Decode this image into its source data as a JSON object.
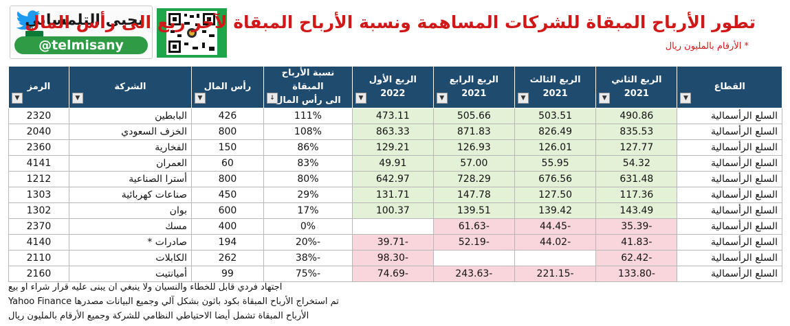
{
  "header": {
    "brand_name": "يحيى التلمساني",
    "brand_handle": "@telmisany",
    "title": "تطور الأرباح المبقاة للشركات المساهمة ونسبة الأرباح المبقاة لآخر ربع الى رأس المال",
    "subtitle": "* الأرقام بالمليون ريال"
  },
  "table": {
    "headers": {
      "sector": "القطاع",
      "q2_2021": [
        "الربع الثاني",
        "2021"
      ],
      "q3_2021": [
        "الربع الثالث",
        "2021"
      ],
      "q4_2021": [
        "الربع الرابع",
        "2021"
      ],
      "q1_2022": [
        "الربع الأول",
        "2022"
      ],
      "ratio": [
        "نسبة الأرباح المبقاة",
        "الى رأس المال"
      ],
      "capital": "رأس المال",
      "company": "الشركة",
      "code": "الرمز"
    },
    "rows": [
      {
        "sector": "السلع الرأسمالية",
        "q2": "490.86",
        "q3": "503.51",
        "q4": "505.66",
        "q1": "473.11",
        "ratio": "111%",
        "capital": "426",
        "company": "البابطين",
        "code": "2320"
      },
      {
        "sector": "السلع الرأسمالية",
        "q2": "835.53",
        "q3": "826.49",
        "q4": "871.83",
        "q1": "863.33",
        "ratio": "108%",
        "capital": "800",
        "company": "الخزف السعودي",
        "code": "2040"
      },
      {
        "sector": "السلع الرأسمالية",
        "q2": "127.77",
        "q3": "126.01",
        "q4": "126.93",
        "q1": "129.21",
        "ratio": "86%",
        "capital": "150",
        "company": "الفخارية",
        "code": "2360"
      },
      {
        "sector": "السلع الرأسمالية",
        "q2": "54.32",
        "q3": "55.95",
        "q4": "57.00",
        "q1": "49.91",
        "ratio": "83%",
        "capital": "60",
        "company": "العمران",
        "code": "4141"
      },
      {
        "sector": "السلع الرأسمالية",
        "q2": "631.48",
        "q3": "676.56",
        "q4": "728.29",
        "q1": "642.97",
        "ratio": "80%",
        "capital": "800",
        "company": "أسترا الصناعية",
        "code": "1212"
      },
      {
        "sector": "السلع الرأسمالية",
        "q2": "117.36",
        "q3": "127.50",
        "q4": "147.78",
        "q1": "131.71",
        "ratio": "29%",
        "capital": "450",
        "company": "صناعات كهربائية",
        "code": "1303"
      },
      {
        "sector": "السلع الرأسمالية",
        "q2": "143.49",
        "q3": "139.42",
        "q4": "139.51",
        "q1": "100.37",
        "ratio": "17%",
        "capital": "600",
        "company": "بوان",
        "code": "1302"
      },
      {
        "sector": "السلع الرأسمالية",
        "q2": "-35.39",
        "q3": "-44.45",
        "q4": "-61.63",
        "q1": "",
        "ratio": "0%",
        "capital": "400",
        "company": "مسك",
        "code": "2370"
      },
      {
        "sector": "السلع الرأسمالية",
        "q2": "-41.83",
        "q3": "-44.02",
        "q4": "-52.19",
        "q1": "-39.71",
        "ratio": "-20%",
        "capital": "194",
        "company": "صادرات *",
        "code": "4140"
      },
      {
        "sector": "السلع الرأسمالية",
        "q2": "-62.42",
        "q3": "",
        "q4": "",
        "q1": "-98.30",
        "ratio": "-38%",
        "capital": "262",
        "company": "الكابلات",
        "code": "2110"
      },
      {
        "sector": "السلع الرأسمالية",
        "q2": "-133.80",
        "q3": "-221.15",
        "q4": "-243.63",
        "q1": "-74.69",
        "ratio": "-75%",
        "capital": "99",
        "company": "أميانتيت",
        "code": "2160"
      }
    ]
  },
  "notes": [
    "اجتهاد فردي قابل للخطاء والنسيان ولا ينبغي ان يبنى عليه قرار شراء او بيع",
    "تم استخراج الأرباح المبقاة بكود باثون بشكل آلي وجميع البيانات مصدرها Yahoo Finance",
    "الأرباح المبقاة تشمل أيضا الاحتياطي النظامي للشركة وجميع الأرقام بالمليون ريال"
  ]
}
